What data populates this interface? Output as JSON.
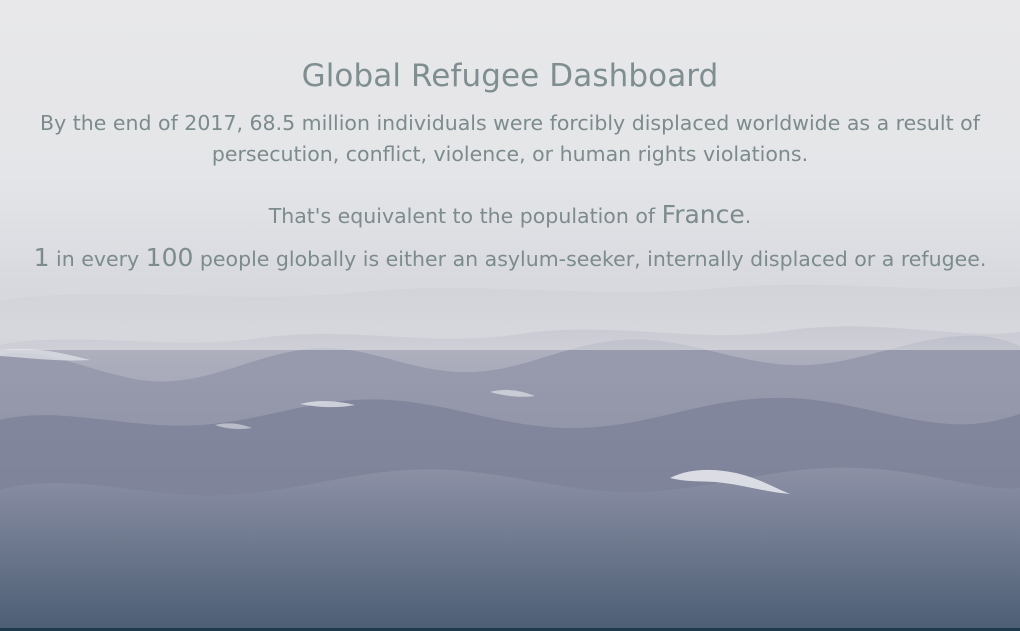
{
  "header": {
    "title": "Global Refugee Dashboard",
    "subtitle": "By the end of 2017, 68.5 million individuals were forcibly displaced worldwide as a result of persecution, conflict, violence, or human rights violations."
  },
  "equivalence": {
    "prefix": "That's equivalent to the population of ",
    "country": "France",
    "suffix": "."
  },
  "ratio": {
    "count": "1",
    "middle": " in every ",
    "total": "100",
    "suffix": " people globally is either an asylum-seeker, internally displaced or a refugee."
  },
  "background": {
    "image": "stormy-sea-image",
    "accent_colors": [
      "#7c8b8d",
      "#e6e7ea",
      "#5f6d84"
    ]
  }
}
